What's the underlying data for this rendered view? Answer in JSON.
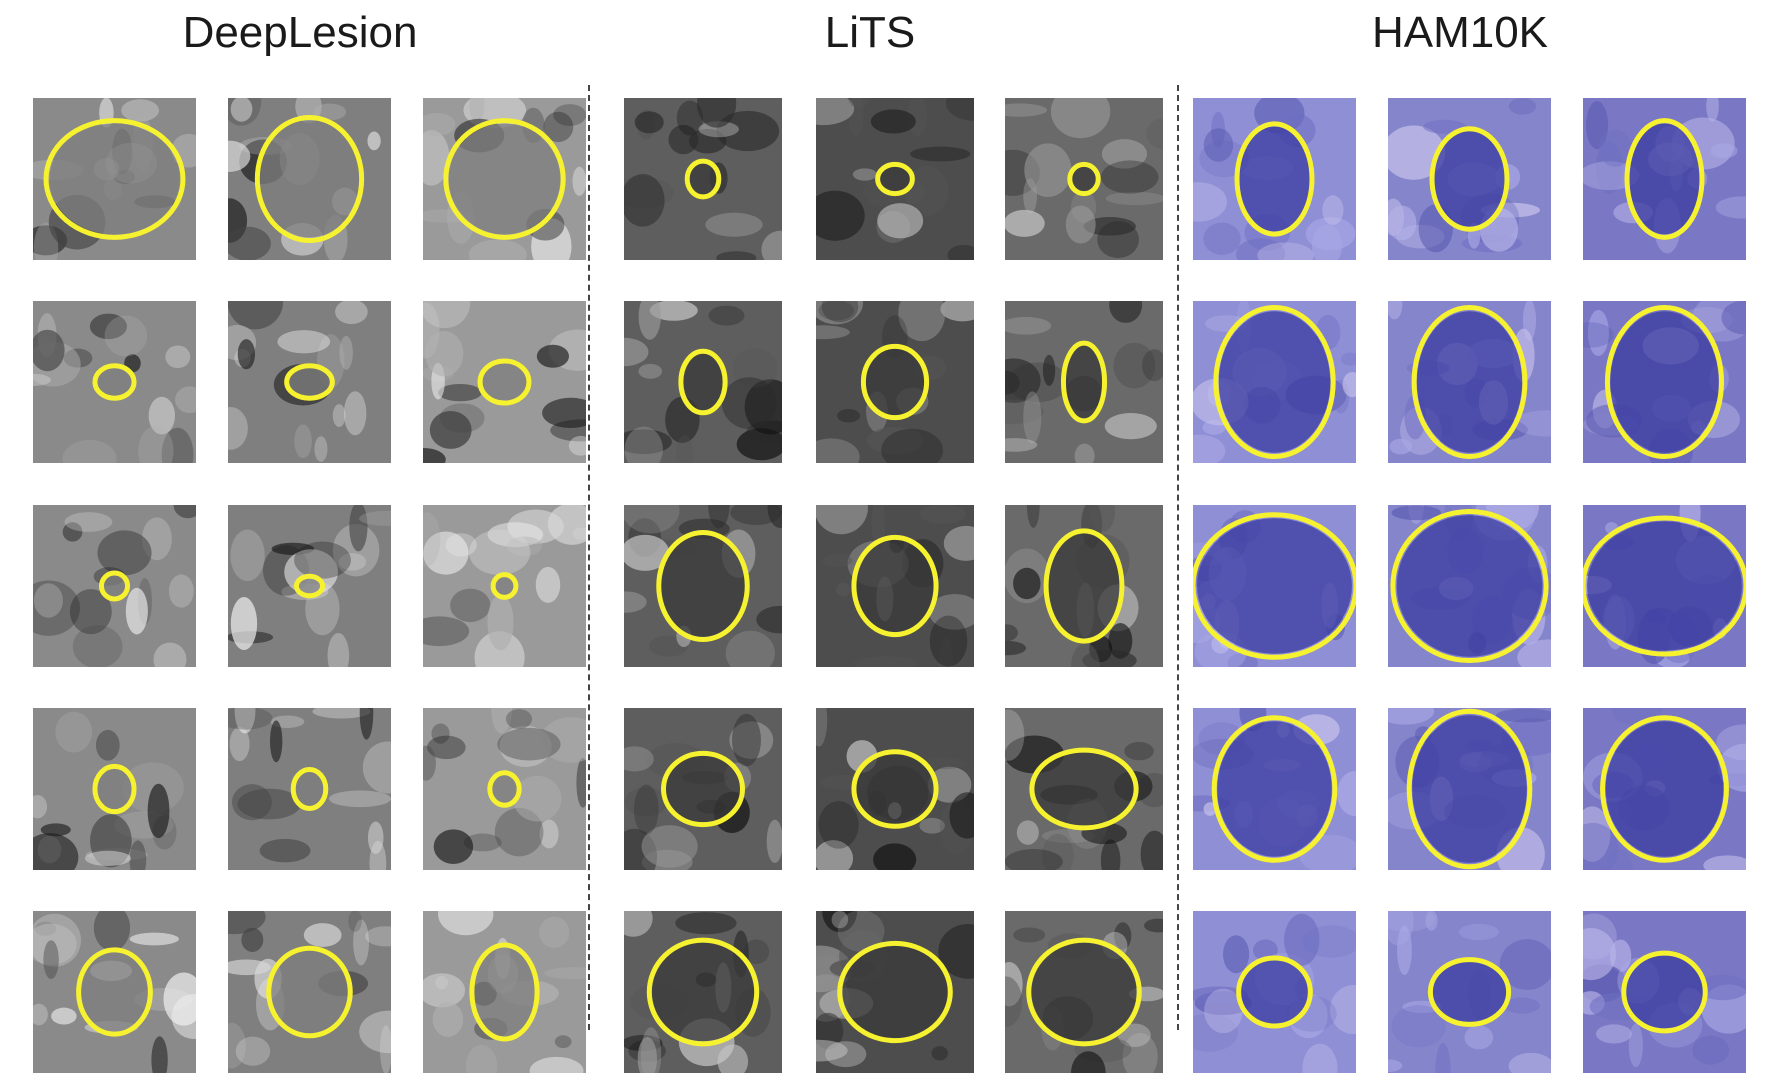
{
  "panels": [
    {
      "title": "DeepLesion",
      "modality": "ct-color-mixed",
      "outline_color": "#f7f230",
      "rows": [
        [
          {
            "rx": 0.42,
            "ry": 0.36
          },
          {
            "rx": 0.32,
            "ry": 0.38
          },
          {
            "rx": 0.36,
            "ry": 0.36
          }
        ],
        [
          {
            "rx": 0.12,
            "ry": 0.1
          },
          {
            "rx": 0.14,
            "ry": 0.1
          },
          {
            "rx": 0.15,
            "ry": 0.13
          }
        ],
        [
          {
            "rx": 0.08,
            "ry": 0.08
          },
          {
            "rx": 0.08,
            "ry": 0.06
          },
          {
            "rx": 0.07,
            "ry": 0.07
          }
        ],
        [
          {
            "rx": 0.12,
            "ry": 0.14
          },
          {
            "rx": 0.1,
            "ry": 0.12
          },
          {
            "rx": 0.09,
            "ry": 0.1
          }
        ],
        [
          {
            "rx": 0.22,
            "ry": 0.26
          },
          {
            "rx": 0.25,
            "ry": 0.27
          },
          {
            "rx": 0.2,
            "ry": 0.29
          }
        ]
      ]
    },
    {
      "title": "LiTS",
      "modality": "ct-gray",
      "outline_color": "#f7f230",
      "rows": [
        [
          {
            "rx": 0.1,
            "ry": 0.11
          },
          {
            "rx": 0.11,
            "ry": 0.09
          },
          {
            "rx": 0.09,
            "ry": 0.09
          }
        ],
        [
          {
            "rx": 0.14,
            "ry": 0.19
          },
          {
            "rx": 0.2,
            "ry": 0.22
          },
          {
            "rx": 0.13,
            "ry": 0.24
          }
        ],
        [
          {
            "rx": 0.28,
            "ry": 0.33
          },
          {
            "rx": 0.26,
            "ry": 0.3
          },
          {
            "rx": 0.24,
            "ry": 0.34
          }
        ],
        [
          {
            "rx": 0.25,
            "ry": 0.22
          },
          {
            "rx": 0.26,
            "ry": 0.23
          },
          {
            "rx": 0.33,
            "ry": 0.24
          }
        ],
        [
          {
            "rx": 0.34,
            "ry": 0.32
          },
          {
            "rx": 0.35,
            "ry": 0.3
          },
          {
            "rx": 0.35,
            "ry": 0.32
          }
        ]
      ]
    },
    {
      "title": "HAM10K",
      "modality": "dermoscopy",
      "outline_color": "#f7f230",
      "rows": [
        [
          {
            "rx": 0.23,
            "ry": 0.34
          },
          {
            "rx": 0.23,
            "ry": 0.31
          },
          {
            "rx": 0.23,
            "ry": 0.36
          }
        ],
        [
          {
            "rx": 0.36,
            "ry": 0.46
          },
          {
            "rx": 0.34,
            "ry": 0.46
          },
          {
            "rx": 0.35,
            "ry": 0.46
          }
        ],
        [
          {
            "rx": 0.5,
            "ry": 0.44
          },
          {
            "rx": 0.47,
            "ry": 0.46
          },
          {
            "rx": 0.5,
            "ry": 0.42
          }
        ],
        [
          {
            "rx": 0.37,
            "ry": 0.44
          },
          {
            "rx": 0.37,
            "ry": 0.48
          },
          {
            "rx": 0.38,
            "ry": 0.44
          }
        ],
        [
          {
            "rx": 0.22,
            "ry": 0.21
          },
          {
            "rx": 0.24,
            "ry": 0.2
          },
          {
            "rx": 0.25,
            "ry": 0.24
          }
        ]
      ]
    }
  ]
}
